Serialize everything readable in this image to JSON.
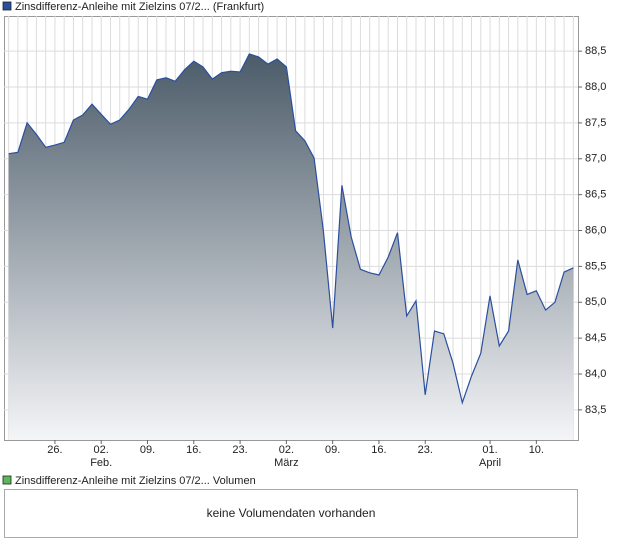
{
  "chart_data": {
    "type": "area",
    "categories": [
      null,
      null,
      null,
      null,
      null,
      "26.",
      null,
      null,
      null,
      null,
      "02.",
      null,
      null,
      null,
      null,
      "09.",
      null,
      null,
      null,
      null,
      "16.",
      null,
      null,
      null,
      null,
      "23.",
      null,
      null,
      null,
      null,
      "02.",
      null,
      null,
      null,
      null,
      "09.",
      null,
      null,
      null,
      null,
      "16.",
      null,
      null,
      null,
      null,
      "23.",
      null,
      null,
      null,
      null,
      null,
      null,
      "01.",
      null,
      null,
      null,
      null,
      "10.",
      null,
      null,
      null,
      null
    ],
    "months": [
      null,
      null,
      null,
      null,
      null,
      null,
      null,
      null,
      null,
      null,
      "Feb.",
      null,
      null,
      null,
      null,
      null,
      null,
      null,
      null,
      null,
      null,
      null,
      null,
      null,
      null,
      null,
      null,
      null,
      null,
      null,
      "März",
      null,
      null,
      null,
      null,
      null,
      null,
      null,
      null,
      null,
      null,
      null,
      null,
      null,
      null,
      null,
      null,
      null,
      null,
      null,
      null,
      null,
      "April",
      null,
      null,
      null,
      null,
      null,
      null,
      null,
      null,
      null
    ],
    "series": [
      {
        "name": "Zinsdifferenz-Anleihe mit Zielzins 07/2... (Frankfurt)",
        "color": "#2a4f9e",
        "values": [
          87.07,
          87.09,
          87.5,
          87.34,
          87.16,
          87.19,
          87.23,
          87.54,
          87.61,
          87.76,
          87.62,
          87.48,
          87.54,
          87.69,
          87.87,
          87.83,
          88.1,
          88.13,
          88.08,
          88.24,
          88.36,
          88.28,
          88.11,
          88.2,
          88.22,
          88.21,
          88.46,
          88.42,
          88.32,
          88.39,
          88.28,
          87.39,
          87.25,
          87.01,
          85.99,
          84.64,
          86.63,
          85.91,
          85.46,
          85.41,
          85.38,
          85.63,
          85.97,
          84.81,
          85.02,
          83.71,
          84.6,
          84.56,
          84.15,
          83.6,
          83.97,
          84.29,
          85.09,
          84.39,
          84.6,
          85.59,
          85.11,
          85.16,
          84.89,
          85.0,
          85.42,
          85.48
        ]
      }
    ],
    "ylim": [
      83.08,
      88.99
    ],
    "yticks": [
      {
        "value": 83.5,
        "label": "83,5"
      },
      {
        "value": 84,
        "label": "84,0"
      },
      {
        "value": 84.5,
        "label": "84,5"
      },
      {
        "value": 85,
        "label": "85,0"
      },
      {
        "value": 85.5,
        "label": "85,5"
      },
      {
        "value": 86,
        "label": "86,0"
      },
      {
        "value": 86.5,
        "label": "86,5"
      },
      {
        "value": 87,
        "label": "87,0"
      },
      {
        "value": 87.5,
        "label": "87,5"
      },
      {
        "value": 88,
        "label": "88,0"
      },
      {
        "value": 88.5,
        "label": "88,5"
      }
    ],
    "grid": true
  },
  "volume_panel": {
    "legend": "Zinsdifferenz-Anleihe mit Zielzins 07/2... Volumen",
    "color": "#5cb85c",
    "message": "keine Volumendaten vorhanden"
  }
}
